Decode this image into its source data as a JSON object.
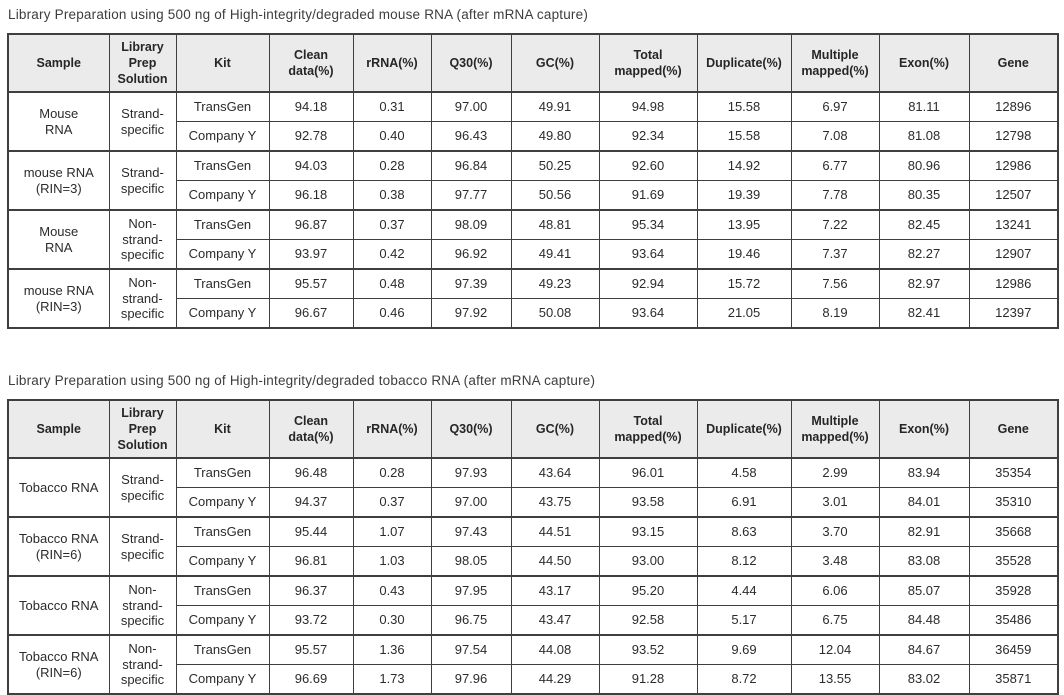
{
  "columns": [
    "Sample",
    "Library Prep Solution",
    "Kit",
    "Clean data(%)",
    "rRNA(%)",
    "Q30(%)",
    "GC(%)",
    "Total mapped(%)",
    "Duplicate(%)",
    "Multiple mapped(%)",
    "Exon(%)",
    "Gene"
  ],
  "colors": {
    "header_background": "#ebebeb",
    "border": "#3f3f3f",
    "text": "#2b2b2b"
  },
  "tables": [
    {
      "title": "Library Preparation using 500 ng of High-integrity/degraded mouse RNA (after mRNA capture)",
      "groups": [
        {
          "sample": "Mouse\nRNA",
          "prep": "Strand-specific",
          "rows": [
            {
              "kit": "TransGen",
              "values": [
                "94.18",
                "0.31",
                "97.00",
                "49.91",
                "94.98",
                "15.58",
                "6.97",
                "81.11",
                "12896"
              ]
            },
            {
              "kit": "Company Y",
              "values": [
                "92.78",
                "0.40",
                "96.43",
                "49.80",
                "92.34",
                "15.58",
                "7.08",
                "81.08",
                "12798"
              ]
            }
          ]
        },
        {
          "sample": "mouse RNA\n(RIN=3)",
          "prep": "Strand-specific",
          "rows": [
            {
              "kit": "TransGen",
              "values": [
                "94.03",
                "0.28",
                "96.84",
                "50.25",
                "92.60",
                "14.92",
                "6.77",
                "80.96",
                "12986"
              ]
            },
            {
              "kit": "Company Y",
              "values": [
                "96.18",
                "0.38",
                "97.77",
                "50.56",
                "91.69",
                "19.39",
                "7.78",
                "80.35",
                "12507"
              ]
            }
          ]
        },
        {
          "sample": "Mouse\nRNA",
          "prep": "Non-strand-specific",
          "rows": [
            {
              "kit": "TransGen",
              "values": [
                "96.87",
                "0.37",
                "98.09",
                "48.81",
                "95.34",
                "13.95",
                "7.22",
                "82.45",
                "13241"
              ]
            },
            {
              "kit": "Company Y",
              "values": [
                "93.97",
                "0.42",
                "96.92",
                "49.41",
                "93.64",
                "19.46",
                "7.37",
                "82.27",
                "12907"
              ]
            }
          ]
        },
        {
          "sample": "mouse RNA\n(RIN=3)",
          "prep": "Non-strand-specific",
          "rows": [
            {
              "kit": "TransGen",
              "values": [
                "95.57",
                "0.48",
                "97.39",
                "49.23",
                "92.94",
                "15.72",
                "7.56",
                "82.97",
                "12986"
              ]
            },
            {
              "kit": "Company Y",
              "values": [
                "96.67",
                "0.46",
                "97.92",
                "50.08",
                "93.64",
                "21.05",
                "8.19",
                "82.41",
                "12397"
              ]
            }
          ]
        }
      ]
    },
    {
      "title": "Library Preparation using 500 ng of High-integrity/degraded tobacco RNA (after mRNA capture)",
      "groups": [
        {
          "sample": "Tobacco RNA",
          "prep": "Strand-specific",
          "rows": [
            {
              "kit": "TransGen",
              "values": [
                "96.48",
                "0.28",
                "97.93",
                "43.64",
                "96.01",
                "4.58",
                "2.99",
                "83.94",
                "35354"
              ]
            },
            {
              "kit": "Company Y",
              "values": [
                "94.37",
                "0.37",
                "97.00",
                "43.75",
                "93.58",
                "6.91",
                "3.01",
                "84.01",
                "35310"
              ]
            }
          ]
        },
        {
          "sample": "Tobacco RNA\n(RIN=6)",
          "prep": "Strand-specific",
          "rows": [
            {
              "kit": "TransGen",
              "values": [
                "95.44",
                "1.07",
                "97.43",
                "44.51",
                "93.15",
                "8.63",
                "3.70",
                "82.91",
                "35668"
              ]
            },
            {
              "kit": "Company Y",
              "values": [
                "96.81",
                "1.03",
                "98.05",
                "44.50",
                "93.00",
                "8.12",
                "3.48",
                "83.08",
                "35528"
              ]
            }
          ]
        },
        {
          "sample": "Tobacco RNA",
          "prep": "Non-strand-specific",
          "rows": [
            {
              "kit": "TransGen",
              "values": [
                "96.37",
                "0.43",
                "97.95",
                "43.17",
                "95.20",
                "4.44",
                "6.06",
                "85.07",
                "35928"
              ]
            },
            {
              "kit": "Company Y",
              "values": [
                "93.72",
                "0.30",
                "96.75",
                "43.47",
                "92.58",
                "5.17",
                "6.75",
                "84.48",
                "35486"
              ]
            }
          ]
        },
        {
          "sample": "Tobacco RNA\n(RIN=6)",
          "prep": "Non-strand-specific",
          "rows": [
            {
              "kit": "TransGen",
              "values": [
                "95.57",
                "1.36",
                "97.54",
                "44.08",
                "93.52",
                "9.69",
                "12.04",
                "84.67",
                "36459"
              ]
            },
            {
              "kit": "Company Y",
              "values": [
                "96.69",
                "1.73",
                "97.96",
                "44.29",
                "91.28",
                "8.72",
                "13.55",
                "83.02",
                "35871"
              ]
            }
          ]
        }
      ]
    }
  ]
}
